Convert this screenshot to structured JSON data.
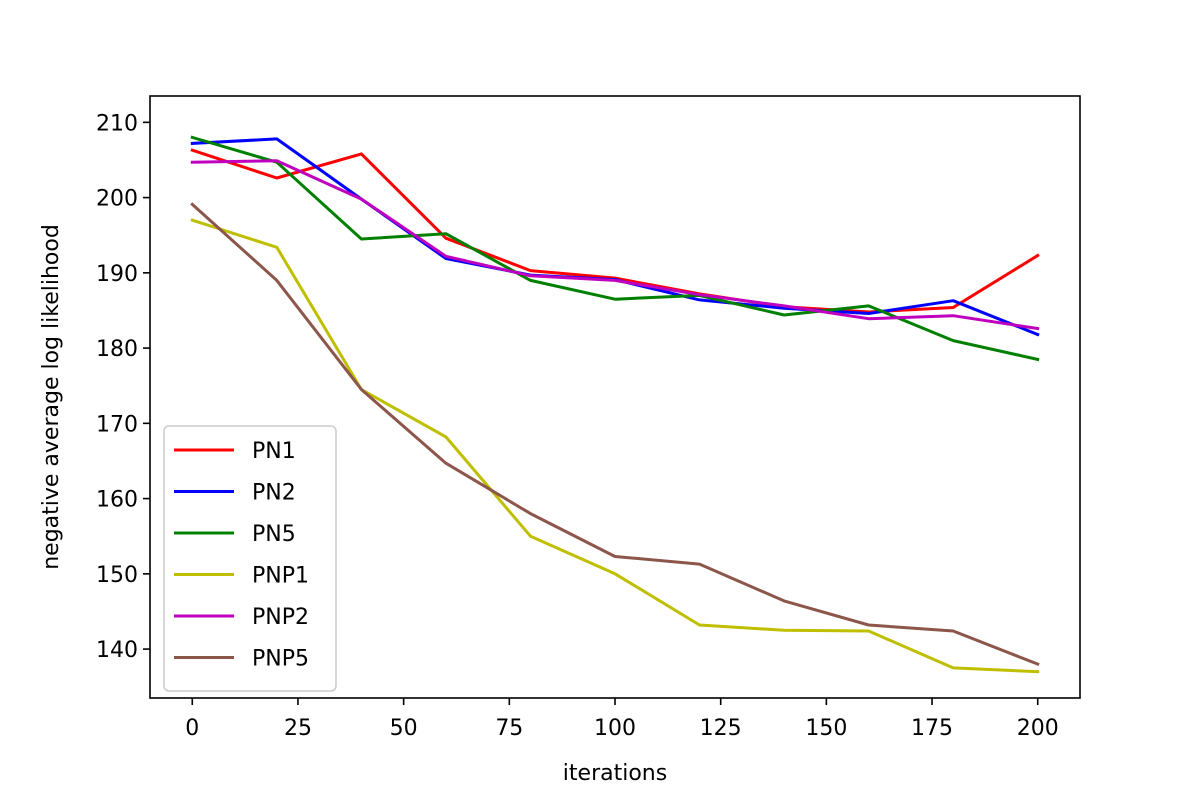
{
  "chart_data": {
    "type": "line",
    "title": "",
    "xlabel": "iterations",
    "ylabel": "negative average log likelihood",
    "xlim": [
      -10,
      210
    ],
    "ylim": [
      133.5,
      213.5
    ],
    "xticks": [
      0,
      25,
      50,
      75,
      100,
      125,
      150,
      175,
      200
    ],
    "yticks": [
      140,
      150,
      160,
      170,
      180,
      190,
      200,
      210
    ],
    "grid": false,
    "legend_position": "lower-left",
    "x": [
      0,
      20,
      40,
      60,
      80,
      100,
      120,
      140,
      160,
      180,
      200
    ],
    "series": [
      {
        "name": "PN1",
        "color": "#ff0000",
        "values": [
          206.3,
          202.6,
          205.8,
          194.6,
          190.3,
          189.3,
          187.2,
          185.5,
          184.8,
          185.4,
          192.3
        ]
      },
      {
        "name": "PN2",
        "color": "#0000ff",
        "values": [
          207.2,
          207.8,
          199.8,
          191.9,
          189.7,
          189.1,
          186.4,
          185.3,
          184.6,
          186.3,
          181.8
        ]
      },
      {
        "name": "PN5",
        "color": "#008000",
        "values": [
          208.0,
          204.7,
          194.5,
          195.2,
          189.0,
          186.5,
          187.0,
          184.4,
          185.6,
          181.0,
          178.5
        ]
      },
      {
        "name": "PNP1",
        "color": "#bfbf00",
        "values": [
          197.0,
          193.4,
          174.5,
          168.2,
          155.0,
          150.0,
          143.2,
          142.5,
          142.4,
          137.5,
          137.0
        ]
      },
      {
        "name": "PNP2",
        "color": "#bf00bf",
        "values": [
          204.7,
          204.9,
          199.8,
          192.2,
          189.6,
          189.0,
          187.1,
          185.6,
          183.9,
          184.3,
          182.6
        ]
      },
      {
        "name": "PNP5",
        "color": "#8c564b",
        "values": [
          199.1,
          189.0,
          174.5,
          164.7,
          158.0,
          152.3,
          151.3,
          146.4,
          143.2,
          142.4,
          138.0
        ]
      }
    ]
  }
}
